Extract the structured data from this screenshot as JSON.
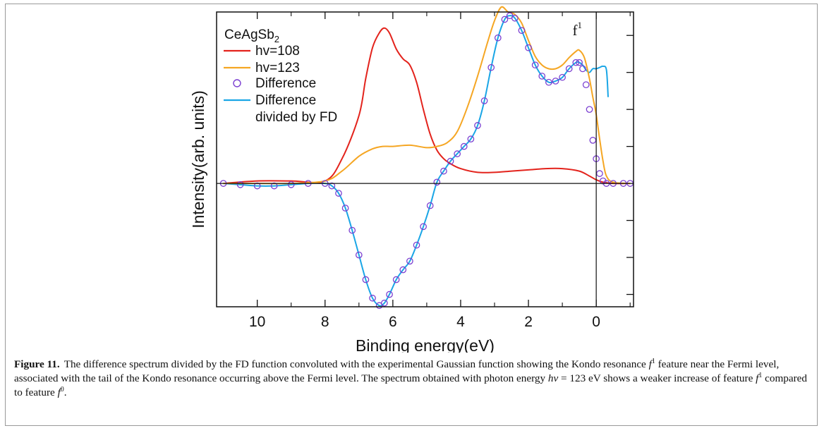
{
  "chart_data": {
    "type": "line",
    "title": "",
    "xlabel": "Binding energy(eV)",
    "ylabel": "Intensity(arb. units)",
    "xlim": [
      11.2,
      -1.1
    ],
    "x_reversed": true,
    "ylim": [
      -1.0,
      1.39
    ],
    "xticks": [
      10,
      8,
      6,
      4,
      2,
      0
    ],
    "xtick_labels": [
      "10",
      "8",
      "6",
      "4",
      "2",
      "0"
    ],
    "y_tick_values": [
      -0.9,
      -0.6,
      -0.3,
      0.3,
      0.6,
      0.9,
      1.2
    ],
    "y_tick_labels_shown": false,
    "grid": false,
    "legend_position": "top-left",
    "reference_lines": {
      "zero_line": 0,
      "fermi_level_x": 0
    },
    "colors": {
      "hv108": "#e3231c",
      "hv123": "#f5a623",
      "difference": "#7b3fd1",
      "difference_fd": "#1aa6e6"
    },
    "legend": {
      "sample_label": "CeAgSb",
      "sample_subscript": "2",
      "entries": [
        {
          "label": "hv=108",
          "marker": "line",
          "color": "#e3231c"
        },
        {
          "label": "hv=123",
          "marker": "line",
          "color": "#f5a623"
        },
        {
          "label": "Difference",
          "marker": "circle",
          "color": "#7b3fd1"
        },
        {
          "label": "Difference",
          "label_line2": "divided by FD",
          "marker": "line",
          "color": "#1aa6e6"
        }
      ]
    },
    "annotations": [
      {
        "text": "f",
        "sup": "0",
        "x": 3.25,
        "y": 1.5
      },
      {
        "text": "f",
        "sup": "1",
        "x": 0.7,
        "y": 1.2
      }
    ],
    "series": [
      {
        "name": "hv=108",
        "style": "line",
        "color": "#e3231c",
        "x": [
          11.0,
          10.0,
          9.0,
          8.0,
          7.5,
          7.0,
          6.8,
          6.6,
          6.4,
          6.25,
          6.1,
          5.9,
          5.7,
          5.5,
          5.3,
          5.1,
          4.9,
          4.7,
          4.5,
          4.3,
          4.0,
          3.5,
          3.0,
          2.5,
          2.0,
          1.5,
          1.0,
          0.5,
          0.2,
          0.0,
          -0.2,
          -0.5,
          -1.0
        ],
        "y": [
          0.0,
          0.02,
          0.02,
          0.02,
          0.2,
          0.55,
          0.85,
          1.1,
          1.22,
          1.26,
          1.22,
          1.09,
          1.01,
          0.96,
          0.82,
          0.6,
          0.4,
          0.27,
          0.2,
          0.16,
          0.12,
          0.09,
          0.09,
          0.1,
          0.11,
          0.12,
          0.12,
          0.1,
          0.06,
          0.03,
          0.01,
          0.0,
          0.0
        ]
      },
      {
        "name": "hv=123",
        "style": "line",
        "color": "#f5a623",
        "x": [
          11.0,
          10.0,
          9.0,
          8.0,
          7.5,
          7.0,
          6.6,
          6.3,
          6.0,
          5.5,
          5.0,
          4.7,
          4.4,
          4.1,
          3.8,
          3.5,
          3.2,
          3.0,
          2.8,
          2.6,
          2.4,
          2.2,
          2.0,
          1.8,
          1.6,
          1.4,
          1.2,
          1.0,
          0.8,
          0.6,
          0.5,
          0.35,
          0.2,
          0.1,
          0.0,
          -0.1,
          -0.2,
          -0.3,
          -0.5,
          -1.0
        ],
        "y": [
          0.0,
          0.0,
          0.0,
          0.02,
          0.1,
          0.22,
          0.28,
          0.3,
          0.3,
          0.31,
          0.29,
          0.3,
          0.33,
          0.42,
          0.62,
          0.87,
          1.15,
          1.32,
          1.43,
          1.39,
          1.37,
          1.3,
          1.16,
          1.03,
          0.96,
          0.93,
          0.93,
          0.96,
          1.02,
          1.07,
          1.08,
          1.02,
          0.85,
          0.7,
          0.56,
          0.36,
          0.18,
          0.06,
          0.01,
          0.0
        ]
      },
      {
        "name": "Difference",
        "style": "circles",
        "color": "#7b3fd1",
        "x": [
          11.0,
          10.5,
          10.0,
          9.5,
          9.0,
          8.5,
          8.0,
          7.8,
          7.6,
          7.4,
          7.2,
          7.0,
          6.8,
          6.6,
          6.4,
          6.25,
          6.1,
          5.9,
          5.7,
          5.5,
          5.3,
          5.1,
          4.9,
          4.7,
          4.5,
          4.3,
          4.1,
          3.9,
          3.7,
          3.5,
          3.3,
          3.1,
          2.9,
          2.7,
          2.55,
          2.4,
          2.2,
          2.0,
          1.8,
          1.6,
          1.4,
          1.2,
          1.0,
          0.8,
          0.6,
          0.5,
          0.4,
          0.3,
          0.2,
          0.1,
          0.0,
          -0.1,
          -0.2,
          -0.3,
          -0.5,
          -0.8,
          -1.0
        ],
        "y": [
          0.0,
          -0.01,
          -0.02,
          -0.02,
          -0.01,
          0.0,
          0.0,
          -0.02,
          -0.08,
          -0.2,
          -0.38,
          -0.58,
          -0.78,
          -0.93,
          -0.99,
          -0.97,
          -0.9,
          -0.78,
          -0.7,
          -0.63,
          -0.5,
          -0.35,
          -0.18,
          0.01,
          0.1,
          0.18,
          0.24,
          0.3,
          0.36,
          0.47,
          0.67,
          0.94,
          1.18,
          1.33,
          1.36,
          1.34,
          1.24,
          1.1,
          0.96,
          0.87,
          0.82,
          0.83,
          0.86,
          0.93,
          0.98,
          0.98,
          0.93,
          0.8,
          0.6,
          0.35,
          0.2,
          0.08,
          0.02,
          0.0,
          0.0,
          0.0,
          0.0
        ]
      },
      {
        "name": "Difference divided by FD",
        "style": "line",
        "color": "#1aa6e6",
        "x": [
          11.0,
          10.5,
          10.0,
          9.5,
          9.0,
          8.5,
          8.0,
          7.8,
          7.6,
          7.4,
          7.2,
          7.0,
          6.8,
          6.6,
          6.4,
          6.25,
          6.1,
          5.9,
          5.7,
          5.5,
          5.3,
          5.1,
          4.9,
          4.7,
          4.5,
          4.3,
          4.1,
          3.9,
          3.7,
          3.5,
          3.3,
          3.1,
          2.9,
          2.7,
          2.55,
          2.4,
          2.2,
          2.0,
          1.8,
          1.6,
          1.4,
          1.2,
          1.0,
          0.8,
          0.6,
          0.5,
          0.4,
          0.3,
          0.2,
          0.1,
          0.0,
          -0.1,
          -0.2,
          -0.3,
          -0.35
        ],
        "y": [
          0.0,
          -0.01,
          -0.02,
          -0.02,
          -0.01,
          0.0,
          0.0,
          -0.02,
          -0.08,
          -0.2,
          -0.38,
          -0.58,
          -0.78,
          -0.93,
          -0.99,
          -0.97,
          -0.9,
          -0.78,
          -0.7,
          -0.63,
          -0.5,
          -0.35,
          -0.18,
          0.01,
          0.1,
          0.18,
          0.24,
          0.3,
          0.36,
          0.47,
          0.67,
          0.94,
          1.18,
          1.33,
          1.36,
          1.34,
          1.24,
          1.1,
          0.96,
          0.87,
          0.82,
          0.83,
          0.86,
          0.93,
          0.98,
          0.98,
          0.96,
          0.92,
          0.9,
          0.93,
          0.93,
          0.94,
          0.95,
          0.92,
          0.7
        ]
      }
    ]
  },
  "caption": {
    "label": "Figure 11.",
    "text_1": "The difference spectrum divided by the FD function convoluted with the experimental Gaussian function showing the Kondo resonance ",
    "f": "f",
    "sup_1": "1",
    "text_2": " feature near the Fermi level, associated with the tail of the Kondo resonance occurring above the Fermi level. The spectrum obtained with photon energy ",
    "hv": "hν",
    "text_3": " = 123 eV shows a weaker increase of feature ",
    "text_4": " compared to feature ",
    "sup_0": "0",
    "text_5": "."
  }
}
